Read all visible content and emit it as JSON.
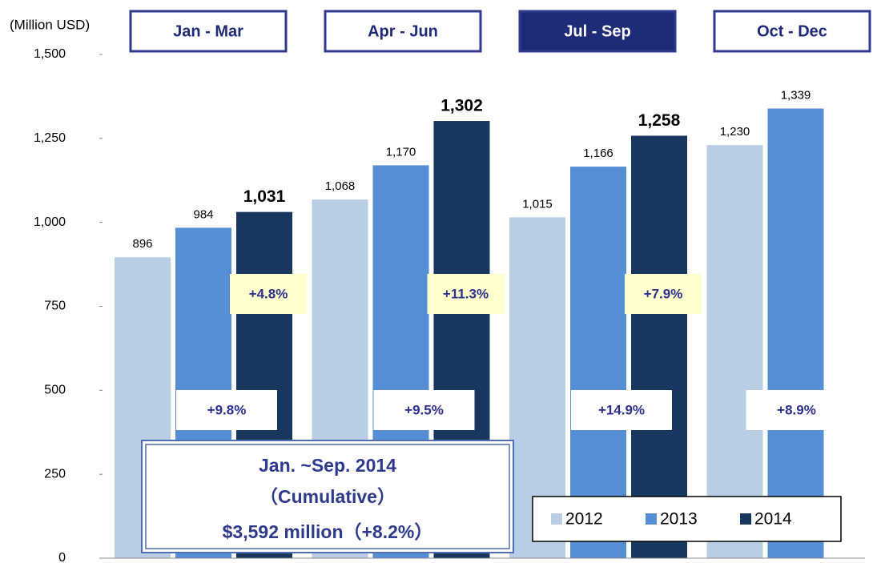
{
  "chart_data": {
    "type": "bar",
    "unit_label": "(Million USD)",
    "categories": [
      "Jan - Mar",
      "Apr - Jun",
      "Jul - Sep",
      "Oct - Dec"
    ],
    "highlight_category": 2,
    "series": [
      {
        "name": "2012",
        "color": "#b9cde5",
        "values": [
          896,
          1068,
          1015,
          1230
        ],
        "value_labels": [
          "896",
          "1,068",
          "1,015",
          "1,230"
        ]
      },
      {
        "name": "2013",
        "color": "#558ed5",
        "values": [
          984,
          1170,
          1166,
          1339
        ],
        "value_labels": [
          "984",
          "1,170",
          "1,166",
          "1,339"
        ]
      },
      {
        "name": "2014",
        "color": "#17375e",
        "values": [
          1031,
          1302,
          1258,
          null
        ],
        "value_labels": [
          "1,031",
          "1,302",
          "1,258",
          null
        ]
      }
    ],
    "ylim": [
      0,
      1500
    ],
    "yticks": [
      0,
      250,
      500,
      750,
      {
        "value": 1000,
        "label": "1,000"
      },
      {
        "value": 1250,
        "label": "1,250"
      },
      {
        "value": 1500,
        "label": "1,500"
      }
    ],
    "growth_2014_labels": [
      "+4.8%",
      "+11.3%",
      "+7.9%"
    ],
    "growth_2013_labels": [
      "+9.8%",
      "+9.5%",
      "+14.9%",
      "+8.9%"
    ],
    "cumulative": {
      "title": "Jan. ~Sep. 2014",
      "subtitle": "（Cumulative）",
      "total": "$3,592 million（+8.2%）"
    }
  }
}
